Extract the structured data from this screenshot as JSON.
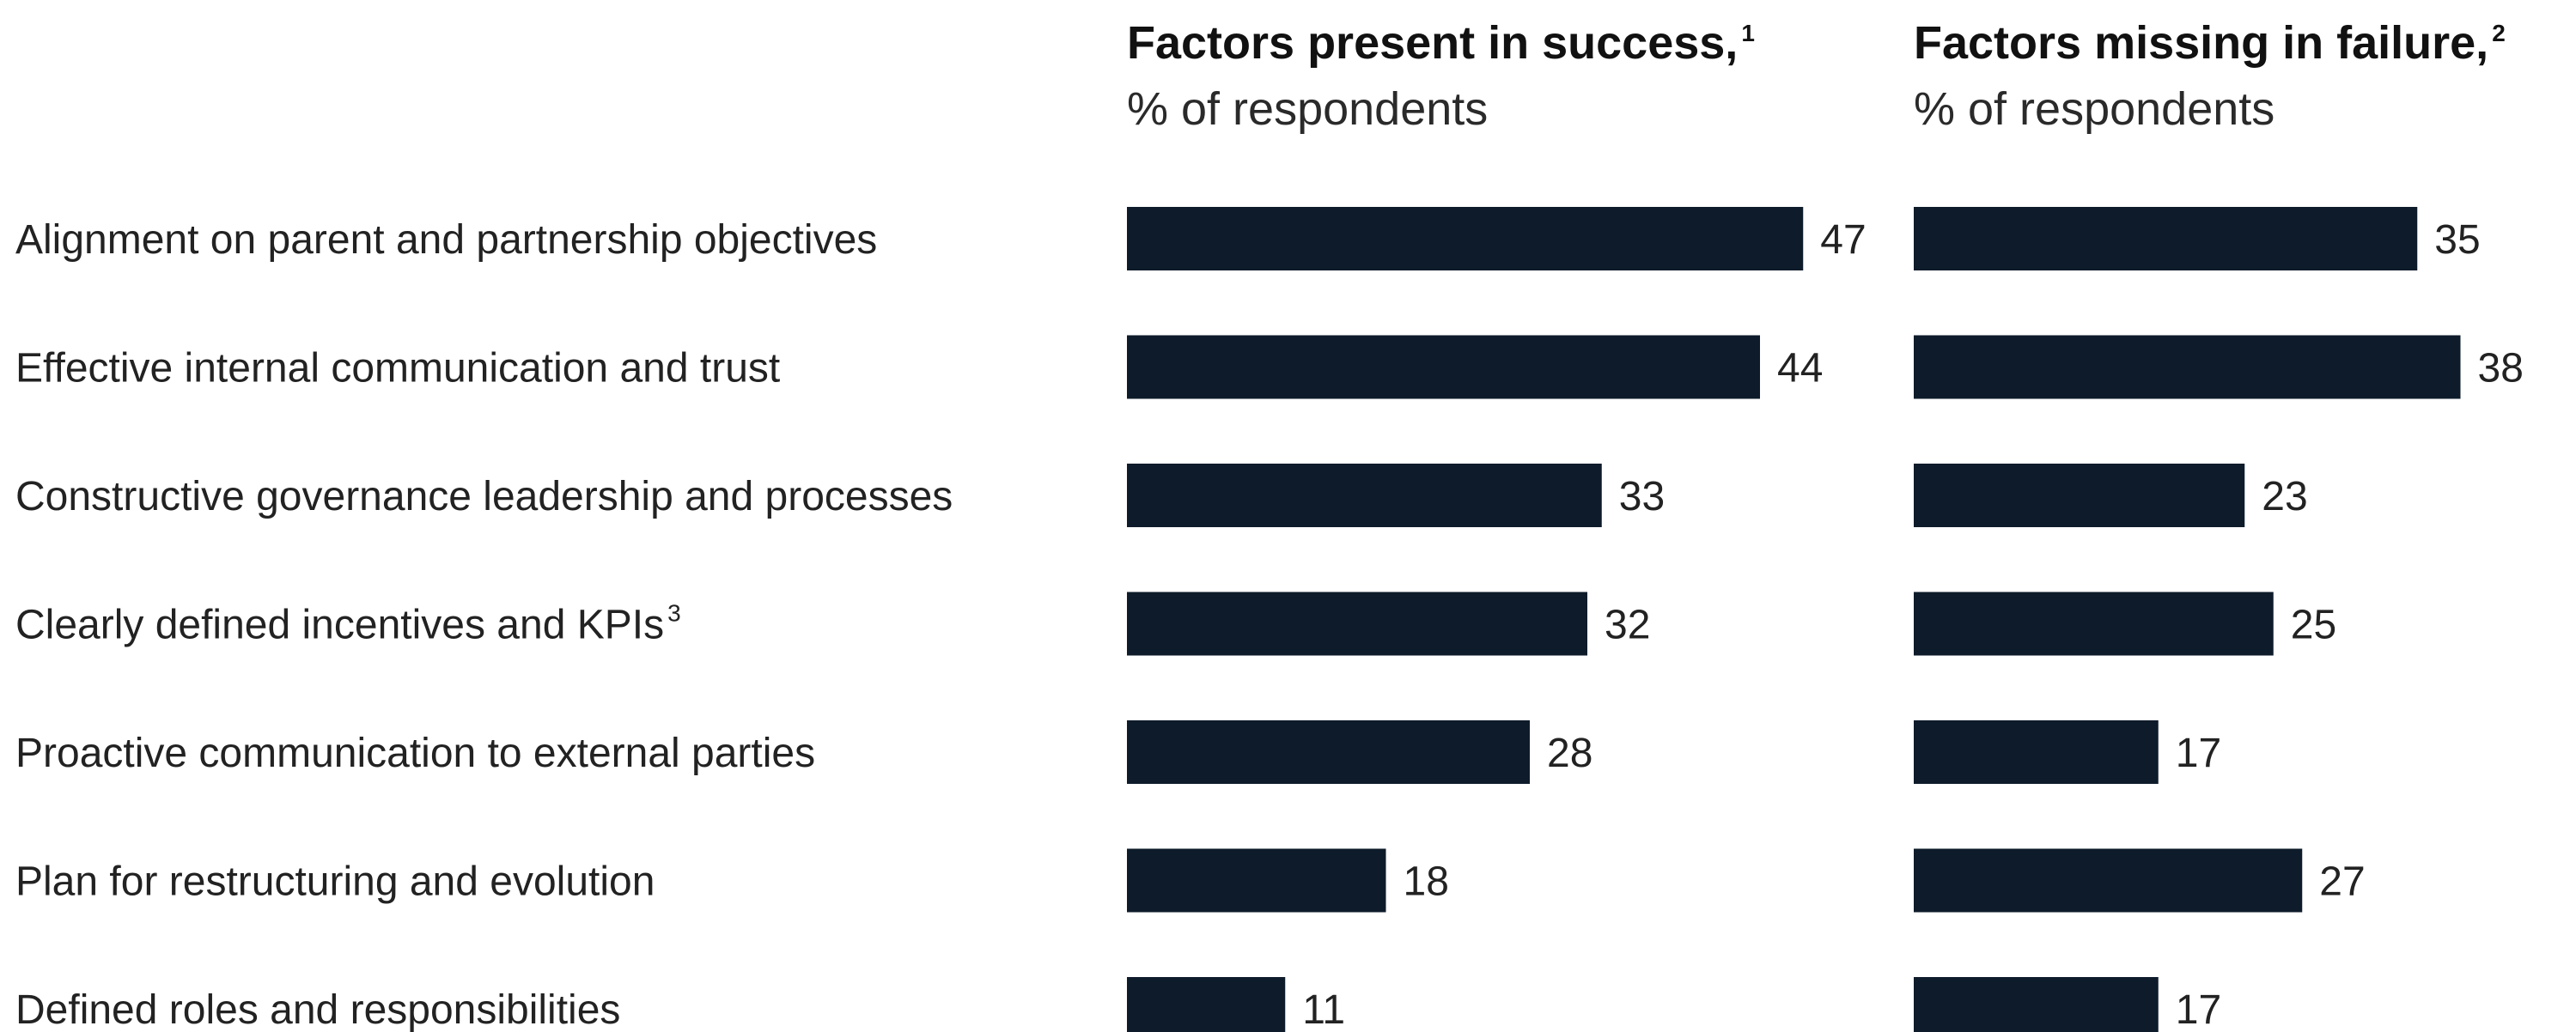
{
  "colors": {
    "bar": "#0e1b2a",
    "text": "#222222"
  },
  "chart_data": [
    {
      "type": "bar",
      "orientation": "horizontal",
      "title": "Factors present in success,",
      "title_footnote": "1",
      "subtitle": "% of respondents",
      "categories": [
        {
          "label": "Alignment on parent and partnership objectives",
          "footnote": ""
        },
        {
          "label": "Effective internal communication and trust",
          "footnote": ""
        },
        {
          "label": "Constructive governance leadership and processes",
          "footnote": ""
        },
        {
          "label": "Clearly defined incentives and KPIs",
          "footnote": "3"
        },
        {
          "label": "Proactive communication to external parties",
          "footnote": ""
        },
        {
          "label": "Plan for restructuring and evolution",
          "footnote": ""
        },
        {
          "label": "Defined roles and responsibilities",
          "footnote": ""
        }
      ],
      "values": [
        47,
        44,
        33,
        32,
        28,
        18,
        11
      ],
      "value_labels": [
        "47",
        "44",
        "33",
        "32",
        "28",
        "18",
        "11"
      ],
      "xlim": [
        0,
        50
      ],
      "grid": false
    },
    {
      "type": "bar",
      "orientation": "horizontal",
      "title": "Factors missing in failure,",
      "title_footnote": "2",
      "subtitle": "% of respondents",
      "categories": [
        {
          "label": "Alignment on parent and partnership objectives",
          "footnote": ""
        },
        {
          "label": "Effective internal communication and trust",
          "footnote": ""
        },
        {
          "label": "Constructive governance leadership and processes",
          "footnote": ""
        },
        {
          "label": "Clearly defined incentives and KPIs",
          "footnote": "3"
        },
        {
          "label": "Proactive communication to external parties",
          "footnote": ""
        },
        {
          "label": "Plan for restructuring and evolution",
          "footnote": ""
        },
        {
          "label": "Defined roles and responsibilities",
          "footnote": ""
        }
      ],
      "values": [
        35,
        38,
        23,
        25,
        17,
        27,
        17
      ],
      "value_labels": [
        "35",
        "38",
        "23",
        "25",
        "17",
        "27",
        "17"
      ],
      "xlim": [
        0,
        50
      ],
      "grid": false
    }
  ]
}
